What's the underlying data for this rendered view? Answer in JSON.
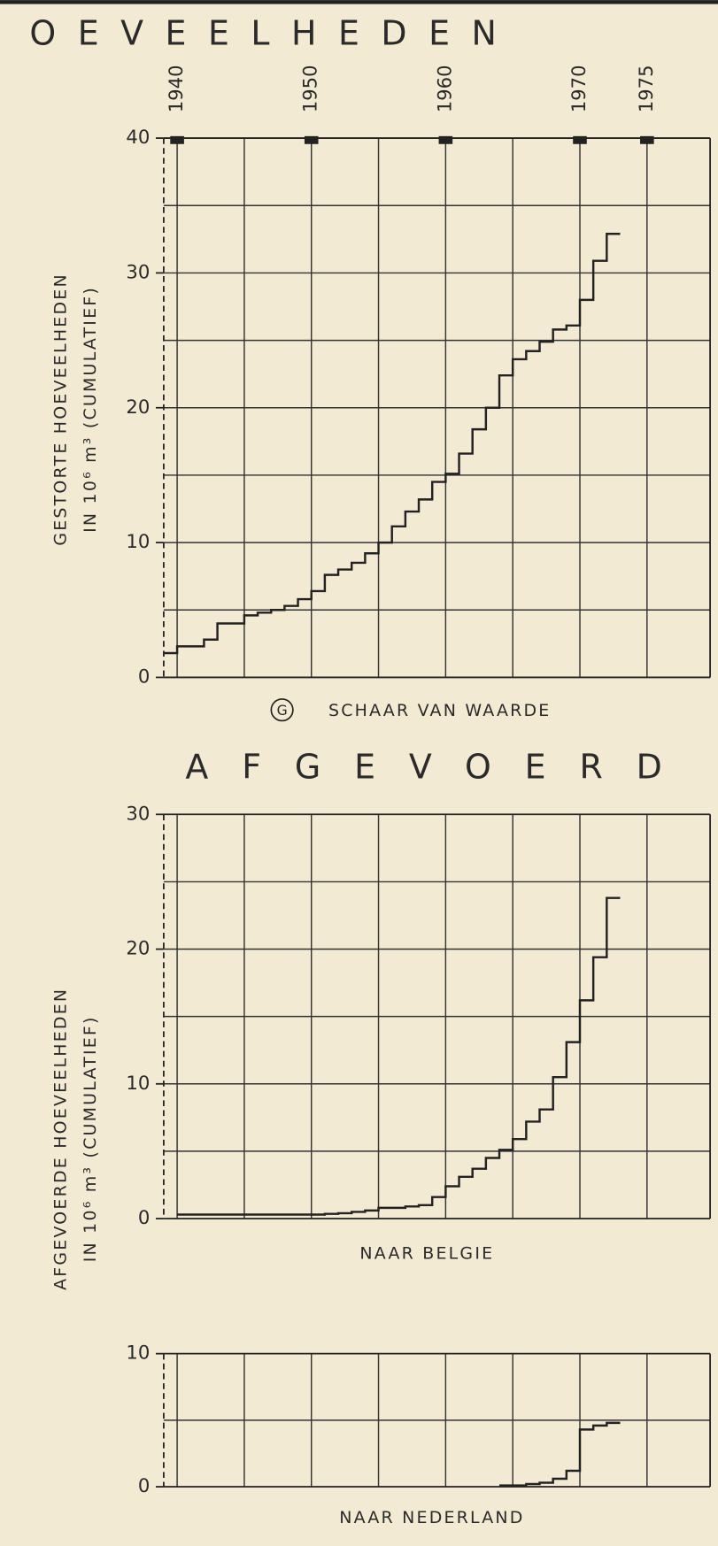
{
  "chart_data": [
    {
      "type": "line",
      "step": true,
      "title": "OEVEELHEDEN",
      "marker": "G",
      "caption": "SCHAAR VAN WAARDE",
      "ylabel": [
        "GESTORTE HOEVEELHEDEN",
        "IN 10⁶ m³ (CUMULATIEF)"
      ],
      "x": [
        1939,
        1940,
        1941,
        1942,
        1943,
        1944,
        1945,
        1946,
        1947,
        1948,
        1949,
        1950,
        1951,
        1952,
        1953,
        1954,
        1955,
        1956,
        1957,
        1958,
        1959,
        1960,
        1961,
        1962,
        1963,
        1964,
        1965,
        1966,
        1967,
        1968,
        1969,
        1970,
        1971,
        1972
      ],
      "values": [
        1.8,
        2.3,
        2.3,
        2.8,
        4.0,
        4.0,
        4.6,
        4.8,
        5.0,
        5.3,
        5.8,
        6.4,
        7.6,
        8.0,
        8.5,
        9.2,
        10.0,
        11.2,
        12.3,
        13.2,
        14.5,
        15.1,
        16.6,
        18.4,
        20.0,
        22.4,
        23.6,
        24.2,
        24.9,
        25.8,
        26.1,
        28.0,
        30.9,
        32.9
      ],
      "color": "#222222",
      "xlim": [
        1939,
        1979.7
      ],
      "xticks": [
        1940,
        1950,
        1960,
        1970,
        1975
      ],
      "xgrid": [
        1940,
        1945,
        1950,
        1955,
        1960,
        1965,
        1970,
        1975
      ],
      "ylim": [
        0,
        40
      ],
      "yticks": [
        0,
        10,
        20,
        30,
        40
      ],
      "ygrid": [
        5,
        10,
        15,
        20,
        25,
        30,
        35
      ]
    },
    {
      "type": "line",
      "step": true,
      "title": "AFGEVOERD",
      "caption": "NAAR BELGIE",
      "ylabel": [
        "AFGEVOERDE HOEVEELHEDEN",
        "IN 10⁶ m³ (CUMULATIEF)"
      ],
      "x": [
        1940,
        1941,
        1942,
        1943,
        1944,
        1945,
        1946,
        1947,
        1948,
        1949,
        1950,
        1951,
        1952,
        1953,
        1954,
        1955,
        1956,
        1957,
        1958,
        1959,
        1960,
        1961,
        1962,
        1963,
        1964,
        1965,
        1966,
        1967,
        1968,
        1969,
        1970,
        1971,
        1972
      ],
      "values": [
        0.3,
        0.3,
        0.3,
        0.3,
        0.3,
        0.3,
        0.3,
        0.3,
        0.3,
        0.3,
        0.3,
        0.35,
        0.4,
        0.5,
        0.6,
        0.8,
        0.8,
        0.9,
        1.0,
        1.6,
        2.4,
        3.1,
        3.7,
        4.5,
        5.1,
        5.9,
        7.2,
        8.1,
        10.5,
        13.1,
        16.2,
        19.4,
        23.8
      ],
      "color": "#222222",
      "xlim": [
        1939,
        1979.7
      ],
      "xgrid": [
        1940,
        1945,
        1950,
        1955,
        1960,
        1965,
        1970,
        1975
      ],
      "ylim": [
        0,
        30
      ],
      "yticks": [
        0,
        10,
        20,
        30
      ],
      "ygrid": [
        5,
        10,
        15,
        20,
        25
      ]
    },
    {
      "type": "line",
      "step": true,
      "caption": "NAAR NEDERLAND",
      "x": [
        1964,
        1965,
        1966,
        1967,
        1968,
        1969,
        1970,
        1971,
        1972
      ],
      "values": [
        0.1,
        0.1,
        0.2,
        0.3,
        0.6,
        1.2,
        4.3,
        4.6,
        4.8
      ],
      "color": "#222222",
      "xlim": [
        1939,
        1979.7
      ],
      "xgrid": [
        1940,
        1945,
        1950,
        1955,
        1960,
        1965,
        1970,
        1975
      ],
      "ylim": [
        0,
        10
      ],
      "yticks": [
        0,
        10
      ],
      "ygrid": [
        5
      ]
    }
  ]
}
